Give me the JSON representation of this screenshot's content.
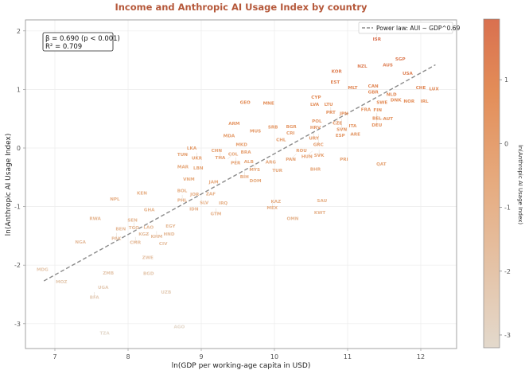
{
  "chart_data": {
    "type": "scatter",
    "title": "Income and Anthropic AI Usage Index by country",
    "xlabel": "ln(GDP per working-age capita in USD)",
    "ylabel": "ln(Anthropic AI Usage Index)",
    "xlim": [
      6.6,
      12.5
    ],
    "ylim": [
      -3.4,
      2.2
    ],
    "xticks": [
      "7",
      "8",
      "9",
      "10",
      "11",
      "12"
    ],
    "yticks": [
      "-3",
      "-2",
      "-1",
      "0",
      "1",
      "2"
    ],
    "grid": true,
    "legend": {
      "label": "Power law: AUI ~ GDP^0.69",
      "placement": "top-right"
    },
    "stats": {
      "beta_line": "β = 0.690 (p < 0.001)",
      "r2_line": "R² = 0.709"
    },
    "fit_line": {
      "slope": 0.69,
      "x_start": 6.85,
      "x_end": 12.2,
      "y_start": -2.27,
      "y_end": 1.42
    },
    "colorbar": {
      "label": "ln(Anthropic AI Usage Index)",
      "ticks": [
        "1",
        "0",
        "-1",
        "-2",
        "-3"
      ],
      "range": [
        -3.2,
        1.95
      ],
      "color_low": "#e3d9cc",
      "color_high": "#d9704f"
    },
    "points": [
      {
        "label": "ISR",
        "x": 11.4,
        "y": 1.95
      },
      {
        "label": "SGP",
        "x": 11.72,
        "y": 1.52
      },
      {
        "label": "AUS",
        "x": 11.55,
        "y": 1.42
      },
      {
        "label": "NZL",
        "x": 11.2,
        "y": 1.4
      },
      {
        "label": "KOR",
        "x": 10.85,
        "y": 1.31
      },
      {
        "label": "USA",
        "x": 11.82,
        "y": 1.28
      },
      {
        "label": "EST",
        "x": 10.83,
        "y": 1.13
      },
      {
        "label": "MLT",
        "x": 11.07,
        "y": 1.03
      },
      {
        "label": "CAN",
        "x": 11.35,
        "y": 1.06
      },
      {
        "label": "GBR",
        "x": 11.35,
        "y": 0.96
      },
      {
        "label": "NLD",
        "x": 11.6,
        "y": 0.92
      },
      {
        "label": "CHE",
        "x": 12.0,
        "y": 1.03
      },
      {
        "label": "LUX",
        "x": 12.18,
        "y": 1.01
      },
      {
        "label": "SWE",
        "x": 11.47,
        "y": 0.78
      },
      {
        "label": "DNK",
        "x": 11.66,
        "y": 0.82
      },
      {
        "label": "NOR",
        "x": 11.84,
        "y": 0.8
      },
      {
        "label": "IRL",
        "x": 12.05,
        "y": 0.8
      },
      {
        "label": "FIN",
        "x": 11.41,
        "y": 0.65
      },
      {
        "label": "BEL",
        "x": 11.4,
        "y": 0.6
      },
      {
        "label": "DEU",
        "x": 11.4,
        "y": 0.57
      },
      {
        "label": "FRA",
        "x": 11.25,
        "y": 0.66
      },
      {
        "label": "AUT",
        "x": 11.4,
        "y": 0.5
      },
      {
        "label": "CYP",
        "x": 10.57,
        "y": 0.87
      },
      {
        "label": "LVA",
        "x": 10.55,
        "y": 0.75
      },
      {
        "label": "LTU",
        "x": 10.74,
        "y": 0.75
      },
      {
        "label": "PRT",
        "x": 10.77,
        "y": 0.7
      },
      {
        "label": "JPN",
        "x": 10.95,
        "y": 0.59
      },
      {
        "label": "CZE",
        "x": 10.86,
        "y": 0.52
      },
      {
        "label": "SVN",
        "x": 10.92,
        "y": 0.5
      },
      {
        "label": "POL",
        "x": 10.58,
        "y": 0.46
      },
      {
        "label": "ITA",
        "x": 11.07,
        "y": 0.38
      },
      {
        "label": "HRV",
        "x": 10.56,
        "y": 0.35
      },
      {
        "label": "URY",
        "x": 10.54,
        "y": 0.26
      },
      {
        "label": "GRC",
        "x": 10.6,
        "y": 0.24
      },
      {
        "label": "ESP",
        "x": 10.9,
        "y": 0.22
      },
      {
        "label": "ARE",
        "x": 11.03,
        "y": 0.24
      },
      {
        "label": "GEO",
        "x": 9.6,
        "y": 0.78
      },
      {
        "label": "MNE",
        "x": 9.92,
        "y": 0.77
      },
      {
        "label": "ARM",
        "x": 9.45,
        "y": 0.42
      },
      {
        "label": "SRB",
        "x": 9.98,
        "y": 0.36
      },
      {
        "label": "BGR",
        "x": 10.23,
        "y": 0.37
      },
      {
        "label": "CRI",
        "x": 10.22,
        "y": 0.26
      },
      {
        "label": "MUS",
        "x": 9.74,
        "y": 0.29
      },
      {
        "label": "MDA",
        "x": 9.38,
        "y": 0.21
      },
      {
        "label": "CHL",
        "x": 10.09,
        "y": 0.14
      },
      {
        "label": "MKD",
        "x": 9.55,
        "y": 0.06
      },
      {
        "label": "ROU",
        "x": 10.37,
        "y": -0.04
      },
      {
        "label": "SVK",
        "x": 10.61,
        "y": -0.03
      },
      {
        "label": "HUN",
        "x": 10.52,
        "y": -0.05
      },
      {
        "label": "PAN",
        "x": 10.3,
        "y": -0.1
      },
      {
        "label": "PRI",
        "x": 10.95,
        "y": -0.19
      },
      {
        "label": "QAT",
        "x": 11.46,
        "y": -0.27
      },
      {
        "label": "BHR",
        "x": 10.56,
        "y": -0.36
      },
      {
        "label": "LKA",
        "x": 8.87,
        "y": 0.0
      },
      {
        "label": "UKR",
        "x": 8.94,
        "y": -0.08
      },
      {
        "label": "TUN",
        "x": 8.82,
        "y": -0.11
      },
      {
        "label": "CHN",
        "x": 9.21,
        "y": -0.04
      },
      {
        "label": "THA",
        "x": 9.26,
        "y": -0.07
      },
      {
        "label": "BRA",
        "x": 9.61,
        "y": -0.07
      },
      {
        "label": "PER",
        "x": 9.47,
        "y": -0.16
      },
      {
        "label": "COL",
        "x": 9.36,
        "y": -0.19
      },
      {
        "label": "ALB",
        "x": 9.65,
        "y": -0.23
      },
      {
        "label": "MYS",
        "x": 9.73,
        "y": -0.28
      },
      {
        "label": "ARG",
        "x": 9.95,
        "y": -0.24
      },
      {
        "label": "TUR",
        "x": 10.04,
        "y": -0.38
      },
      {
        "label": "BIH",
        "x": 9.59,
        "y": -0.4
      },
      {
        "label": "DOM",
        "x": 9.74,
        "y": -0.56
      },
      {
        "label": "MAR",
        "x": 8.75,
        "y": -0.32
      },
      {
        "label": "LBN",
        "x": 8.96,
        "y": -0.34
      },
      {
        "label": "VNM",
        "x": 8.83,
        "y": -0.53
      },
      {
        "label": "JAM",
        "x": 9.17,
        "y": -0.58
      },
      {
        "label": "BOL",
        "x": 8.74,
        "y": -0.73
      },
      {
        "label": "PHL",
        "x": 8.74,
        "y": -0.8
      },
      {
        "label": "JOR",
        "x": 8.91,
        "y": -0.79
      },
      {
        "label": "ZAF",
        "x": 9.13,
        "y": -0.78
      },
      {
        "label": "SLV",
        "x": 9.04,
        "y": -0.93
      },
      {
        "label": "IRQ",
        "x": 9.3,
        "y": -0.94
      },
      {
        "label": "GTM",
        "x": 9.2,
        "y": -1.03
      },
      {
        "label": "IDN",
        "x": 8.9,
        "y": -1.04
      },
      {
        "label": "KAZ",
        "x": 10.02,
        "y": -0.91
      },
      {
        "label": "MEX",
        "x": 9.97,
        "y": -0.93
      },
      {
        "label": "SAU",
        "x": 10.65,
        "y": -0.9
      },
      {
        "label": "KWT",
        "x": 10.62,
        "y": -1.1
      },
      {
        "label": "OMN",
        "x": 10.25,
        "y": -1.2
      },
      {
        "label": "NPL",
        "x": 7.82,
        "y": -0.87
      },
      {
        "label": "KEN",
        "x": 8.19,
        "y": -0.77
      },
      {
        "label": "GHA",
        "x": 8.29,
        "y": -1.05
      },
      {
        "label": "RWA",
        "x": 7.55,
        "y": -1.2
      },
      {
        "label": "SEN",
        "x": 8.06,
        "y": -1.23
      },
      {
        "label": "TGO",
        "x": 8.08,
        "y": -1.27
      },
      {
        "label": "BEN",
        "x": 7.9,
        "y": -1.38
      },
      {
        "label": "PAK",
        "x": 7.84,
        "y": -1.45
      },
      {
        "label": "LAO",
        "x": 8.28,
        "y": -1.35
      },
      {
        "label": "KHM",
        "x": 8.39,
        "y": -1.42
      },
      {
        "label": "KGZ",
        "x": 8.29,
        "y": -1.47
      },
      {
        "label": "EGY",
        "x": 8.58,
        "y": -1.33
      },
      {
        "label": "HND",
        "x": 8.56,
        "y": -1.47
      },
      {
        "label": "CMR",
        "x": 8.1,
        "y": -1.52
      },
      {
        "label": "NGA",
        "x": 7.35,
        "y": -1.6
      },
      {
        "label": "CIV",
        "x": 8.48,
        "y": -1.63
      },
      {
        "label": "ZWE",
        "x": 8.27,
        "y": -1.87
      },
      {
        "label": "MDG",
        "x": 6.83,
        "y": -2.07
      },
      {
        "label": "ZMB",
        "x": 7.73,
        "y": -2.13
      },
      {
        "label": "BGD",
        "x": 8.28,
        "y": -2.14
      },
      {
        "label": "MOZ",
        "x": 7.09,
        "y": -2.28
      },
      {
        "label": "UGA",
        "x": 7.66,
        "y": -2.38
      },
      {
        "label": "BFA",
        "x": 7.54,
        "y": -2.46
      },
      {
        "label": "UZB",
        "x": 8.52,
        "y": -2.46
      },
      {
        "label": "AGO",
        "x": 8.7,
        "y": -3.05
      },
      {
        "label": "TZA",
        "x": 7.68,
        "y": -3.16
      }
    ]
  }
}
